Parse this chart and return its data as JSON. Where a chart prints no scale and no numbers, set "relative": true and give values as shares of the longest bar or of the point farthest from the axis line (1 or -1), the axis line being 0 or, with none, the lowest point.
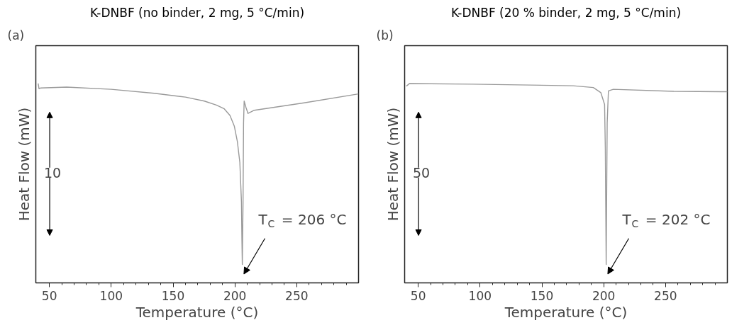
{
  "chart_data": [
    {
      "type": "line",
      "title": "K-DNBF (no binder, 2 mg, 5 °C/min)",
      "xlabel": "Temperature (°C)",
      "ylabel": "Heat Flow (mW)",
      "relative": true,
      "tick_labels": "x",
      "xlim": [
        39,
        300
      ],
      "xticks": [
        50,
        {
          "value": 60,
          "label": null
        },
        {
          "value": 70,
          "label": null
        },
        {
          "value": 80,
          "label": null
        },
        {
          "value": 90,
          "label": null
        },
        100,
        {
          "value": 110,
          "label": null
        },
        {
          "value": 120,
          "label": null
        },
        {
          "value": 130,
          "label": null
        },
        {
          "value": 140,
          "label": null
        },
        150,
        {
          "value": 160,
          "label": null
        },
        {
          "value": 170,
          "label": null
        },
        {
          "value": 180,
          "label": null
        },
        {
          "value": 190,
          "label": null
        },
        200,
        {
          "value": 210,
          "label": null
        },
        {
          "value": 220,
          "label": null
        },
        {
          "value": 230,
          "label": null
        },
        {
          "value": 240,
          "label": null
        },
        250,
        {
          "value": 260,
          "label": null
        },
        {
          "value": 270,
          "label": null
        },
        {
          "value": 280,
          "label": null
        },
        {
          "value": 290,
          "label": null
        }
      ],
      "series": [
        {
          "color": "#9a9a9a",
          "x": [
            40.9,
            41.6,
            43,
            64,
            100,
            134.8,
            160,
            175.3,
            185,
            191.4,
            196,
            199.5,
            202,
            204,
            205.3,
            205.7,
            206,
            206.6,
            207,
            207.5,
            209,
            210.6,
            215.7,
            256,
            300
          ],
          "values": [
            1.0,
            0.974,
            0.978,
            0.982,
            0.971,
            0.951,
            0.932,
            0.912,
            0.892,
            0.873,
            0.84,
            0.787,
            0.709,
            0.604,
            0.407,
            0.21,
            0.092,
            0.407,
            0.801,
            0.912,
            0.879,
            0.85,
            0.866,
            0.903,
            0.948
          ]
        }
      ],
      "annotations": [
        "(a)",
        "10",
        {
          "text": "T$_{C}$ = 206 °C",
          "x": 206,
          "y": 0.092
        }
      ]
    },
    {
      "type": "line",
      "title": "K-DNBF (20 % binder, 2 mg, 5 °C/min)",
      "xlabel": "Temperature (°C)",
      "ylabel": "Heat Flow (mW)",
      "relative": true,
      "tick_labels": "x",
      "xlim": [
        39,
        300
      ],
      "xticks": [
        50,
        {
          "value": 60,
          "label": null
        },
        {
          "value": 70,
          "label": null
        },
        {
          "value": 80,
          "label": null
        },
        {
          "value": 90,
          "label": null
        },
        100,
        {
          "value": 110,
          "label": null
        },
        {
          "value": 120,
          "label": null
        },
        {
          "value": 130,
          "label": null
        },
        {
          "value": 140,
          "label": null
        },
        150,
        {
          "value": 160,
          "label": null
        },
        {
          "value": 170,
          "label": null
        },
        {
          "value": 180,
          "label": null
        },
        {
          "value": 190,
          "label": null
        },
        200,
        {
          "value": 210,
          "label": null
        },
        {
          "value": 220,
          "label": null
        },
        {
          "value": 230,
          "label": null
        },
        {
          "value": 240,
          "label": null
        },
        250,
        {
          "value": 260,
          "label": null
        },
        {
          "value": 270,
          "label": null
        },
        {
          "value": 280,
          "label": null
        },
        {
          "value": 290,
          "label": null
        }
      ],
      "series": [
        {
          "color": "#9a9a9a",
          "x": [
            40.4,
            42.9,
            93.8,
            175.3,
            191.6,
            197.7,
            200.7,
            201.3,
            202,
            202.8,
            203.8,
            207.8,
            256.7,
            300
          ],
          "values": [
            0.987,
            1.0,
            0.997,
            0.989,
            0.98,
            0.954,
            0.895,
            0.671,
            0.092,
            0.803,
            0.963,
            0.971,
            0.961,
            0.959
          ]
        }
      ],
      "annotations": [
        "(b)",
        "50",
        {
          "text": "T$_{C}$ = 202 °C",
          "x": 202,
          "y": 0.092
        }
      ]
    }
  ]
}
